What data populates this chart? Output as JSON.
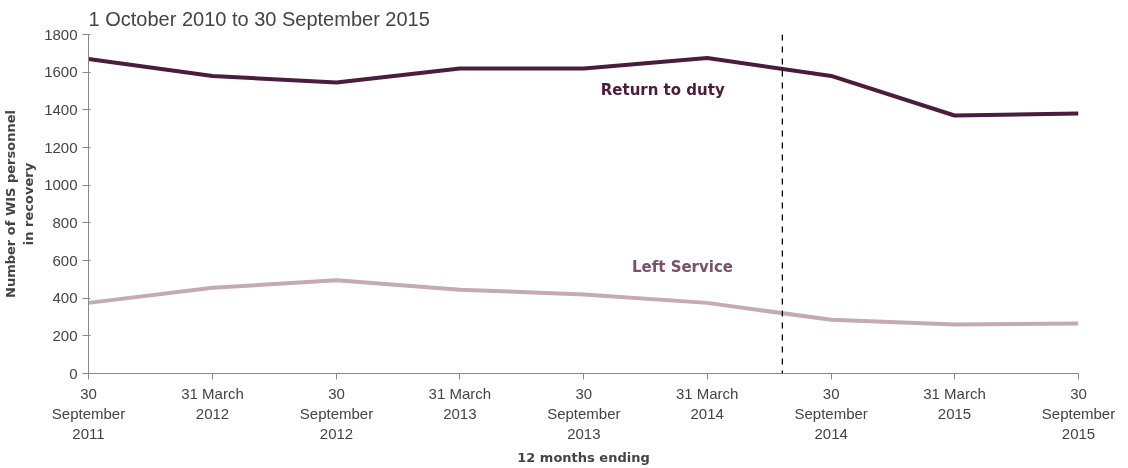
{
  "chart_data": {
    "type": "line",
    "title": "1 October 2010 to 30 September 2015",
    "xlabel": "12 months ending",
    "ylabel": "Number of WIS personnel\nin recovery",
    "x": [
      "2011-09-30",
      "2012-03-31",
      "2012-09-30",
      "2013-03-31",
      "2013-09-30",
      "2014-03-31",
      "2014-09-30",
      "2015-03-31",
      "2015-09-30"
    ],
    "xlim": [
      "2011-09-30",
      "2015-09-30"
    ],
    "xticks": [
      {
        "value": "2011-09-30",
        "label": "30\nSeptember\n2011"
      },
      {
        "value": "2012-03-31",
        "label": "31 March\n2012"
      },
      {
        "value": "2012-09-30",
        "label": "30\nSeptember\n2012"
      },
      {
        "value": "2013-03-31",
        "label": "31 March\n2013"
      },
      {
        "value": "2013-09-30",
        "label": "30\nSeptember\n2013"
      },
      {
        "value": "2014-03-31",
        "label": "31 March\n2014"
      },
      {
        "value": "2014-09-30",
        "label": "30\nSeptember\n2014"
      },
      {
        "value": "2015-03-31",
        "label": "31 March\n2015"
      },
      {
        "value": "2015-09-30",
        "label": "30\nSeptember\n2015"
      }
    ],
    "series": [
      {
        "name": "Return to duty",
        "color": "#4b1c3c",
        "values": [
          1670,
          1580,
          1545,
          1620,
          1620,
          1675,
          1580,
          1370,
          1380
        ]
      },
      {
        "name": "Left Service",
        "color": "#c4aab4",
        "values": [
          375,
          455,
          495,
          445,
          420,
          375,
          285,
          260,
          265
        ]
      }
    ],
    "ylim": [
      0,
      1800
    ],
    "yticks": [
      0,
      200,
      400,
      600,
      800,
      1000,
      1200,
      1400,
      1600,
      1800
    ],
    "ref_lines": [
      {
        "axis": "x",
        "value": "2014-07-20",
        "line_style": "dashed",
        "color": "#000000"
      }
    ],
    "grid": false,
    "legend": false,
    "marker": "none",
    "line_style": "solid"
  }
}
